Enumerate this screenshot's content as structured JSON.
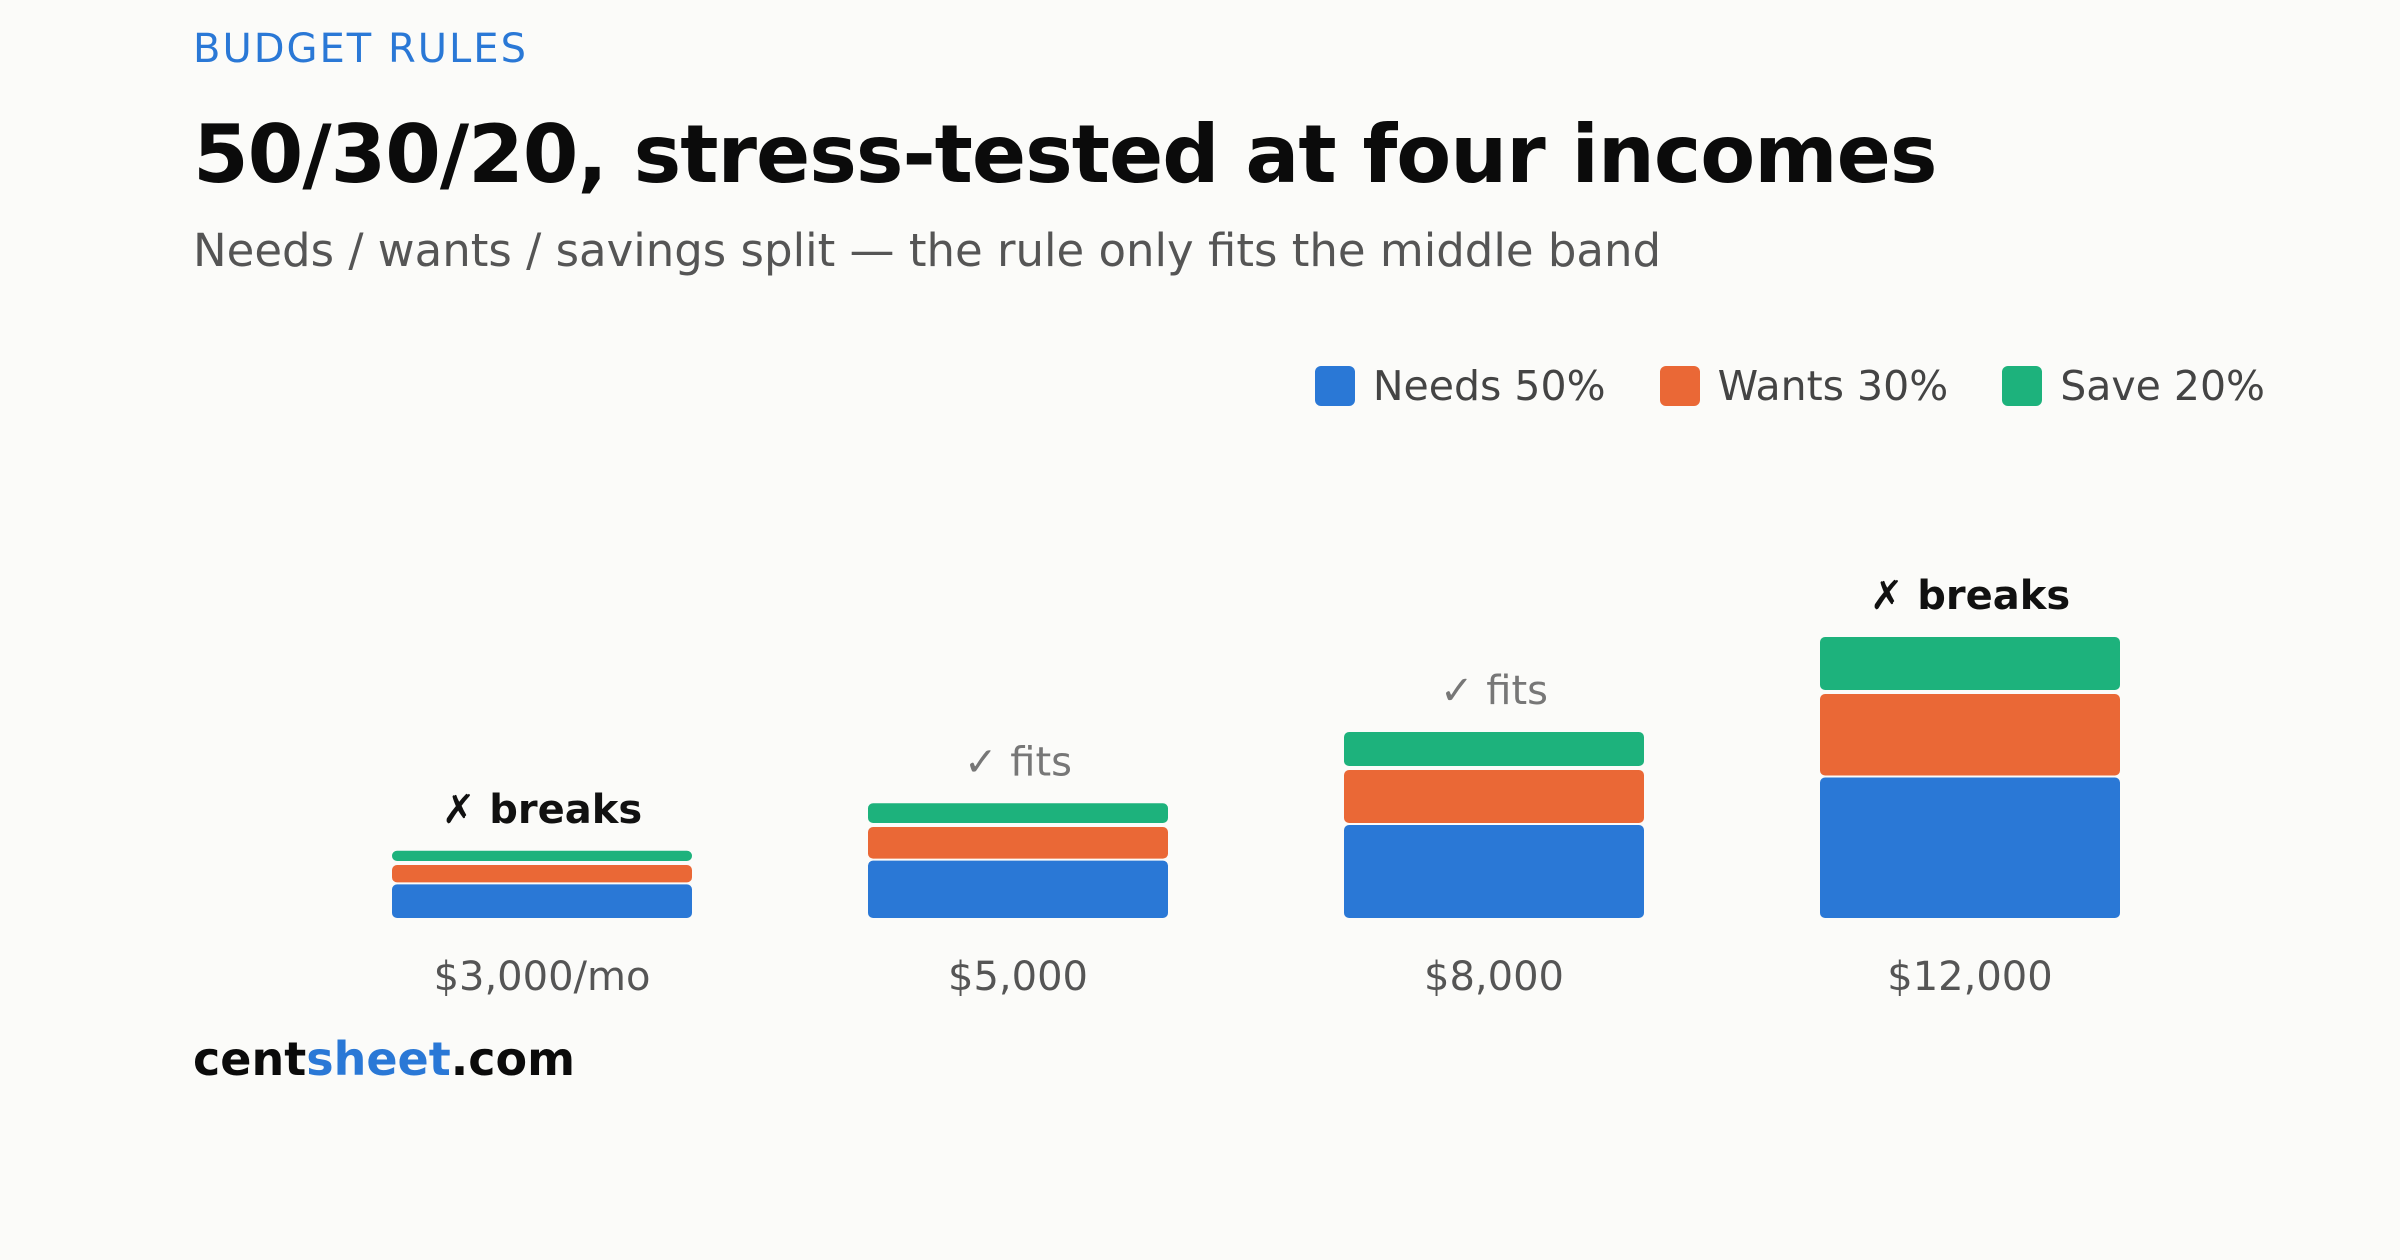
{
  "header": {
    "kicker": "BUDGET RULES",
    "title": "50/30/20, stress-tested at four incomes",
    "subtitle": "Needs / wants / savings split — the rule only fits the middle band"
  },
  "legend": [
    {
      "label": "Needs 50%",
      "color": "#2a78d6"
    },
    {
      "label": "Wants 30%",
      "color": "#ea6836"
    },
    {
      "label": "Save 20%",
      "color": "#1db27c"
    }
  ],
  "chart_data": {
    "type": "bar",
    "stacked": true,
    "categories": [
      "$3,000/mo",
      "$5,000",
      "$8,000",
      "$12,000"
    ],
    "income_values": [
      3000,
      5000,
      8000,
      12000
    ],
    "series": [
      {
        "name": "Needs 50%",
        "color": "#2a78d6",
        "values": [
          1500,
          2500,
          4000,
          6000
        ]
      },
      {
        "name": "Wants 30%",
        "color": "#ea6836",
        "values": [
          900,
          1500,
          2400,
          3600
        ]
      },
      {
        "name": "Save 20%",
        "color": "#1db27c",
        "values": [
          600,
          1000,
          1600,
          2400
        ]
      }
    ],
    "annotations": [
      {
        "category": "$3,000/mo",
        "text": "✗ breaks",
        "verdict": "breaks"
      },
      {
        "category": "$5,000",
        "text": "✓ fits",
        "verdict": "fits"
      },
      {
        "category": "$8,000",
        "text": "✓ fits",
        "verdict": "fits"
      },
      {
        "category": "$12,000",
        "text": "✗ breaks",
        "verdict": "breaks"
      }
    ],
    "legend_position": "top-right",
    "grid": false,
    "ylim": [
      0,
      12000
    ]
  },
  "footer": {
    "brand_prefix": "cent",
    "brand_accent": "sheet",
    "brand_suffix": ".com"
  }
}
